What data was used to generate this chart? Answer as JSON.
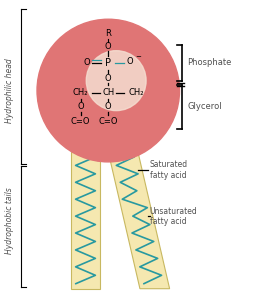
{
  "fig_width": 2.67,
  "fig_height": 3.0,
  "dpi": 100,
  "bg_color": "#ffffff",
  "head_circle_color": "#e07575",
  "head_glow_color": "#f5ddd0",
  "tail_color": "#f5e8b0",
  "tail_border_color": "#c8b860",
  "zigzag_color": "#2899a0",
  "text_color": "#000000",
  "label_color": "#505050",
  "phosphate_label": "Phosphate",
  "glycerol_label": "Glycerol",
  "saturated_label": "Saturated\nfatty acid",
  "unsaturated_label": "Unsaturated\nfatty acid",
  "hydrophilic_label": "Hydrophilic head",
  "hydrophobic_label": "Hydrophobic tails"
}
